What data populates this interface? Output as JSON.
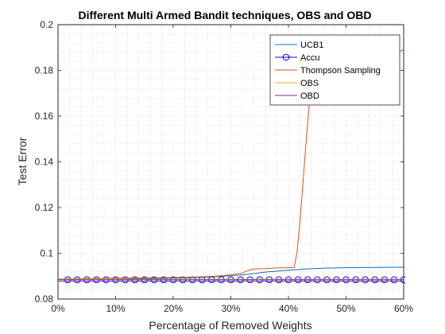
{
  "chart_data": {
    "type": "line",
    "title": "Different Multi Armed Bandit techniques, OBS and OBD",
    "xlabel": "Percentage of Removed Weights",
    "ylabel": "Test Error",
    "xlim": [
      0,
      60
    ],
    "ylim": [
      0.08,
      0.2
    ],
    "x_tick_values": [
      0,
      10,
      20,
      30,
      40,
      50,
      60
    ],
    "x_tick_labels": [
      "0%",
      "10%",
      "20%",
      "30%",
      "40%",
      "50%",
      "60%"
    ],
    "y_tick_values": [
      0.08,
      0.1,
      0.12,
      0.14,
      0.16,
      0.18,
      0.2
    ],
    "y_tick_labels": [
      "0.08",
      "0.1",
      "0.12",
      "0.14",
      "0.16",
      "0.18",
      "0.2"
    ],
    "grid": "dotted",
    "legend_position": "top-right",
    "series": [
      {
        "name": "UCB1",
        "color": "#0072bd",
        "marker": "none",
        "x": [
          0,
          10,
          20,
          25,
          30,
          33,
          36,
          40,
          43,
          46,
          50,
          55,
          60
        ],
        "y": [
          0.0886,
          0.0888,
          0.0892,
          0.0895,
          0.0902,
          0.0908,
          0.0918,
          0.0926,
          0.0931,
          0.0935,
          0.0937,
          0.0938,
          0.0939
        ]
      },
      {
        "name": "Accu",
        "color": "#0000ff",
        "marker": "circle",
        "x": [
          0,
          60
        ],
        "y": [
          0.0884,
          0.0884
        ],
        "marker_count": 36
      },
      {
        "name": "Thompson Sampling",
        "color": "#d95319",
        "marker": "none",
        "x": [
          0,
          10,
          20,
          25,
          28,
          30,
          32,
          33,
          34,
          36,
          38,
          40,
          41,
          41.5,
          42,
          42.5,
          43,
          43.5,
          44,
          44.5,
          45,
          46,
          50,
          55,
          59,
          60
        ],
        "y": [
          0.0888,
          0.0891,
          0.0894,
          0.0897,
          0.0901,
          0.0906,
          0.0914,
          0.0925,
          0.0931,
          0.0933,
          0.0936,
          0.0937,
          0.0938,
          0.101,
          0.114,
          0.13,
          0.147,
          0.162,
          0.174,
          0.182,
          0.1865,
          0.1875,
          0.1878,
          0.188,
          0.188,
          0.189
        ]
      },
      {
        "name": "OBS",
        "color": "#edb120",
        "marker": "none",
        "x": [
          0,
          60
        ],
        "y": [
          0.0887,
          0.0887
        ]
      },
      {
        "name": "OBD",
        "color": "#7e2f8e",
        "marker": "none",
        "x": [
          0,
          60
        ],
        "y": [
          0.0878,
          0.0878
        ]
      }
    ]
  }
}
